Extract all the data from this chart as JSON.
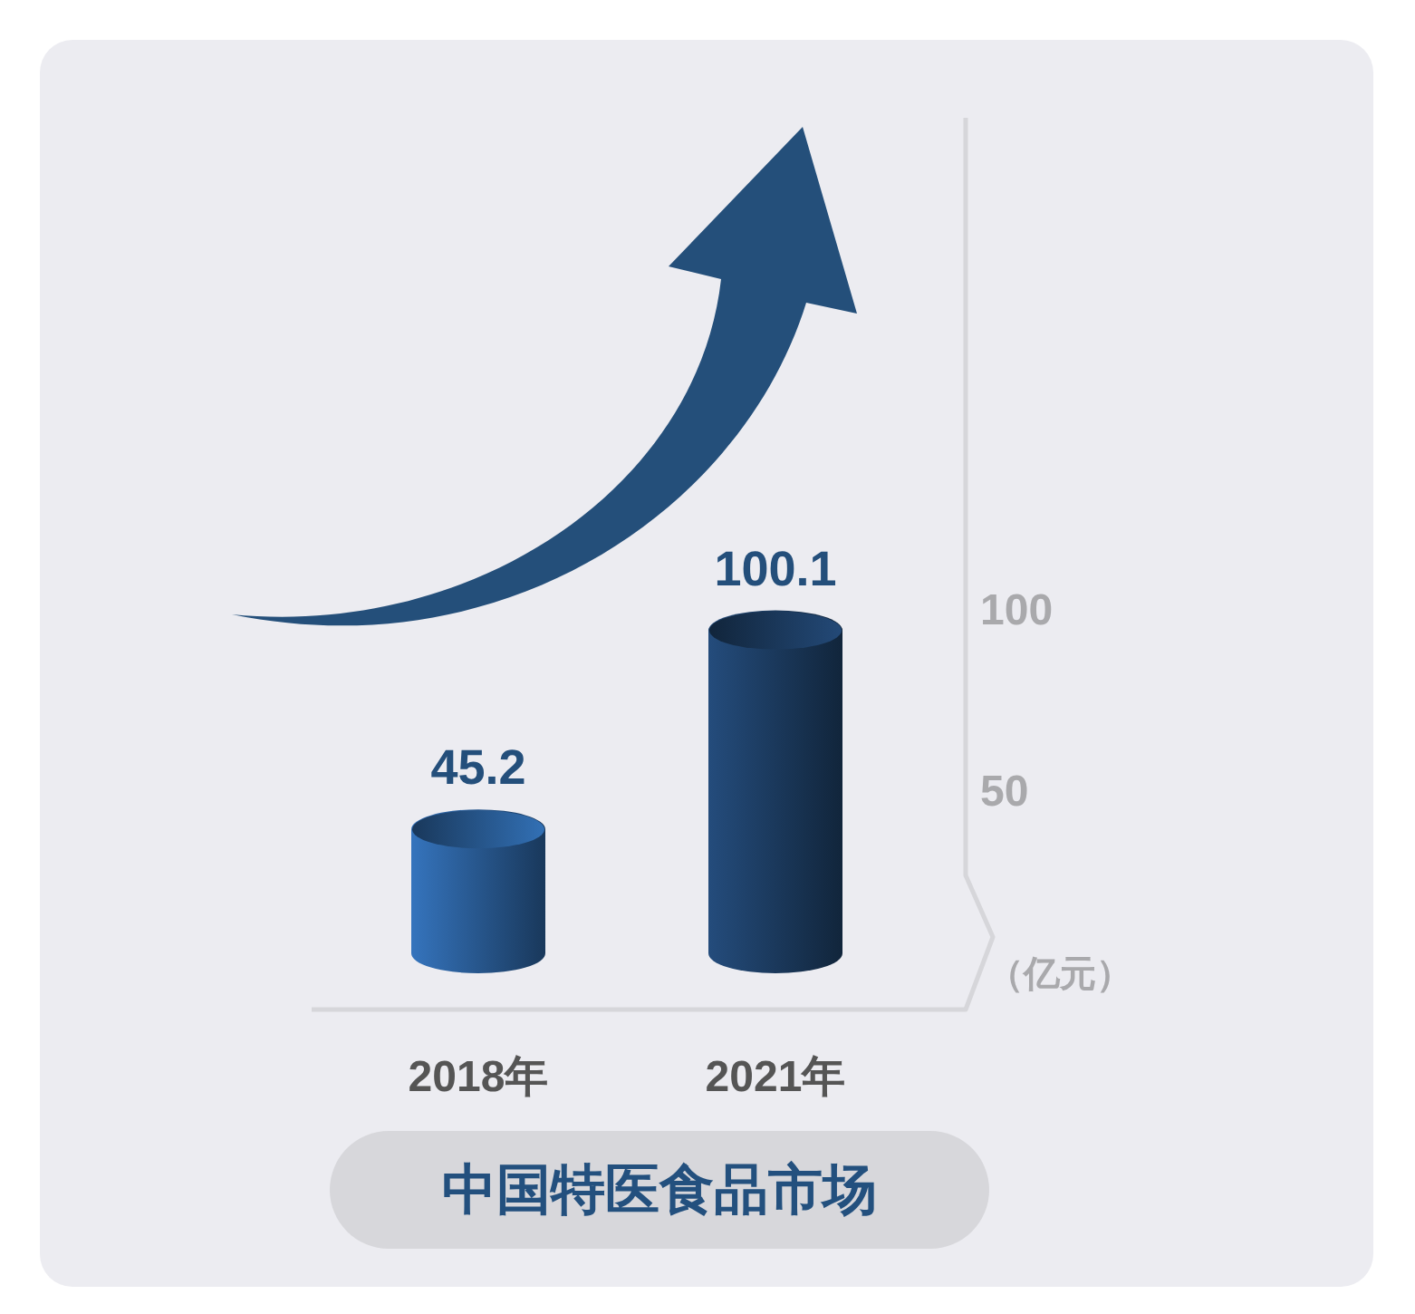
{
  "chart_data": {
    "type": "bar",
    "title": "中国特医食品市场",
    "ylabel": "（亿元）",
    "categories": [
      "2018年",
      "2021年"
    ],
    "values": [
      45.2,
      100.1
    ],
    "colors": [
      "#2a5d97",
      "#1d3d63"
    ],
    "ylim": [
      -10,
      236
    ],
    "yticks": [
      50,
      100
    ],
    "data_labels": true
  }
}
